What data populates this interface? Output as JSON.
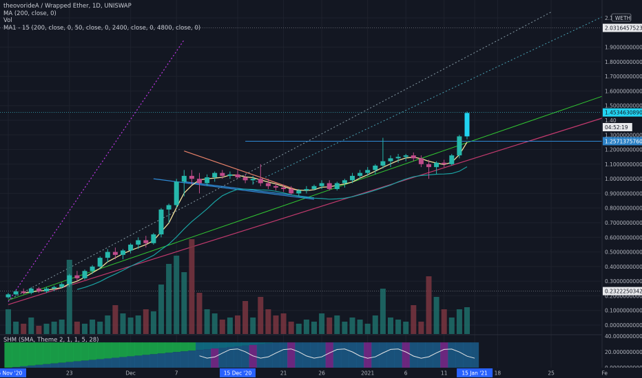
{
  "legend": {
    "title": "theovorideA / Wrapped Ether, 1D, UNISWAP",
    "ma": "MA (200, close, 0)",
    "vol": "Vol",
    "ma1": "MA1 - 15 (200, close, 0, 50, close, 0, 2400, close, 0, 4800, close, 0)"
  },
  "indicator": {
    "label": "SHM (SMA, Theme 2, 1, 1, 5, 28)"
  },
  "currency": "WETH",
  "price_tags": [
    {
      "text": "2.0316457523",
      "value": 2.0316457523,
      "style": "light"
    },
    {
      "text": "1.4534630890",
      "value": 1.453463089,
      "style": "cyan"
    },
    {
      "text": "04:52:19",
      "value": 1.4,
      "style": "light"
    },
    {
      "text": "1.2571375760",
      "value": 1.257137576,
      "style": "blue"
    },
    {
      "text": "0.2322250342",
      "value": 0.2322250342,
      "style": "light"
    }
  ],
  "indicator_ticks": [
    "40.0000000000",
    "20.0000000000",
    "0.0000000000"
  ],
  "date_highlights": [
    "15 Nov '20",
    "15 Dec '20",
    "15 Jan '21"
  ],
  "chart_data": {
    "type": "candlestick",
    "title": "theovorideA / Wrapped Ether, 1D, UNISWAP",
    "y_ticks": [
      {
        "v": 2.1,
        "label": "2.10"
      },
      {
        "v": 1.9,
        "label": "1.9000000000"
      },
      {
        "v": 1.8,
        "label": "1.8000000000"
      },
      {
        "v": 1.7,
        "label": "1.7000000000"
      },
      {
        "v": 1.6,
        "label": "1.6000000000"
      },
      {
        "v": 1.5,
        "label": "1.5000000000"
      },
      {
        "v": 1.4,
        "label": "1.40"
      },
      {
        "v": 1.3,
        "label": "1.3000000000"
      },
      {
        "v": 1.2,
        "label": "1.2000000000"
      },
      {
        "v": 1.1,
        "label": "1.1000000000"
      },
      {
        "v": 1.0,
        "label": "1.0000000000"
      },
      {
        "v": 0.9,
        "label": "0.9000000000"
      },
      {
        "v": 0.8,
        "label": "0.8000000000"
      },
      {
        "v": 0.7,
        "label": "0.7000000000"
      },
      {
        "v": 0.6,
        "label": "0.6000000000"
      },
      {
        "v": 0.5,
        "label": "0.5000000000"
      },
      {
        "v": 0.4,
        "label": "0.4000000000"
      },
      {
        "v": 0.3,
        "label": "0.3000000000"
      },
      {
        "v": 0.2,
        "label": "0.2000000000"
      },
      {
        "v": 0.1,
        "label": "0.1000000000"
      },
      {
        "v": 0.0,
        "label": "0.0000000000"
      }
    ],
    "x_labels": [
      {
        "label": "15 Nov '20",
        "day": 0
      },
      {
        "label": "23",
        "day": 8
      },
      {
        "label": "Dec",
        "day": 16
      },
      {
        "label": "7",
        "day": 22
      },
      {
        "label": "15 Dec '20",
        "day": 30
      },
      {
        "label": "21",
        "day": 36
      },
      {
        "label": "26",
        "day": 41
      },
      {
        "label": "2021",
        "day": 47
      },
      {
        "label": "6",
        "day": 52
      },
      {
        "label": "11",
        "day": 57
      },
      {
        "label": "15 Jan '21",
        "day": 61
      },
      {
        "label": "18",
        "day": 64
      },
      {
        "label": "25",
        "day": 71
      },
      {
        "label": "Fe",
        "day": 78
      }
    ],
    "candles": [
      [
        0.19,
        0.22,
        0.18,
        0.21
      ],
      [
        0.21,
        0.24,
        0.2,
        0.23
      ],
      [
        0.23,
        0.25,
        0.21,
        0.22
      ],
      [
        0.22,
        0.26,
        0.21,
        0.25
      ],
      [
        0.25,
        0.26,
        0.22,
        0.23
      ],
      [
        0.23,
        0.26,
        0.22,
        0.25
      ],
      [
        0.25,
        0.27,
        0.23,
        0.26
      ],
      [
        0.26,
        0.29,
        0.25,
        0.28
      ],
      [
        0.28,
        0.35,
        0.26,
        0.34
      ],
      [
        0.34,
        0.37,
        0.3,
        0.32
      ],
      [
        0.32,
        0.38,
        0.31,
        0.37
      ],
      [
        0.37,
        0.41,
        0.35,
        0.4
      ],
      [
        0.4,
        0.47,
        0.38,
        0.46
      ],
      [
        0.46,
        0.52,
        0.43,
        0.5
      ],
      [
        0.5,
        0.53,
        0.45,
        0.48
      ],
      [
        0.48,
        0.52,
        0.45,
        0.51
      ],
      [
        0.51,
        0.56,
        0.49,
        0.55
      ],
      [
        0.55,
        0.6,
        0.52,
        0.58
      ],
      [
        0.58,
        0.61,
        0.53,
        0.56
      ],
      [
        0.56,
        0.63,
        0.55,
        0.62
      ],
      [
        0.62,
        0.8,
        0.6,
        0.79
      ],
      [
        0.79,
        0.83,
        0.7,
        0.82
      ],
      [
        0.82,
        1.0,
        0.8,
        0.98
      ],
      [
        0.98,
        1.06,
        0.88,
        1.02
      ],
      [
        1.02,
        1.06,
        0.96,
        1.0
      ],
      [
        1.0,
        1.04,
        0.9,
        0.97
      ],
      [
        0.97,
        1.03,
        0.95,
        1.01
      ],
      [
        1.01,
        1.05,
        0.98,
        1.04
      ],
      [
        1.04,
        1.06,
        1.0,
        1.02
      ],
      [
        1.02,
        1.05,
        1.0,
        1.03
      ],
      [
        1.03,
        1.06,
        1.0,
        1.01
      ],
      [
        1.01,
        1.03,
        0.97,
        0.99
      ],
      [
        0.99,
        1.02,
        0.96,
        1.0
      ],
      [
        1.0,
        1.1,
        0.95,
        0.97
      ],
      [
        0.97,
        1.0,
        0.93,
        0.95
      ],
      [
        0.95,
        0.97,
        0.92,
        0.94
      ],
      [
        0.94,
        0.96,
        0.91,
        0.93
      ],
      [
        0.93,
        0.95,
        0.89,
        0.9
      ],
      [
        0.9,
        0.93,
        0.88,
        0.92
      ],
      [
        0.92,
        0.95,
        0.9,
        0.93
      ],
      [
        0.93,
        0.96,
        0.92,
        0.95
      ],
      [
        0.95,
        0.99,
        0.93,
        0.97
      ],
      [
        0.97,
        0.99,
        0.92,
        0.93
      ],
      [
        0.93,
        0.98,
        0.92,
        0.97
      ],
      [
        0.97,
        1.0,
        0.94,
        0.99
      ],
      [
        0.99,
        1.04,
        0.97,
        1.02
      ],
      [
        1.02,
        1.06,
        1.0,
        1.04
      ],
      [
        1.04,
        1.08,
        1.02,
        1.06
      ],
      [
        1.06,
        1.1,
        1.03,
        1.09
      ],
      [
        1.09,
        1.28,
        1.07,
        1.12
      ],
      [
        1.12,
        1.16,
        1.08,
        1.14
      ],
      [
        1.14,
        1.17,
        1.11,
        1.15
      ],
      [
        1.15,
        1.17,
        1.12,
        1.16
      ],
      [
        1.16,
        1.18,
        1.12,
        1.14
      ],
      [
        1.14,
        1.16,
        1.08,
        1.1
      ],
      [
        1.1,
        1.13,
        1.0,
        1.08
      ],
      [
        1.08,
        1.12,
        1.03,
        1.11
      ],
      [
        1.11,
        1.13,
        1.08,
        1.1
      ],
      [
        1.1,
        1.17,
        1.09,
        1.16
      ],
      [
        1.16,
        1.3,
        1.14,
        1.29
      ],
      [
        1.29,
        1.46,
        1.27,
        1.45
      ]
    ],
    "volume": [
      12,
      6,
      5,
      8,
      4,
      5,
      6,
      7,
      36,
      6,
      5,
      7,
      6,
      9,
      14,
      10,
      8,
      9,
      12,
      11,
      24,
      34,
      38,
      30,
      46,
      20,
      12,
      10,
      7,
      8,
      9,
      16,
      8,
      18,
      12,
      9,
      10,
      6,
      5,
      7,
      6,
      10,
      8,
      9,
      6,
      8,
      7,
      5,
      9,
      22,
      8,
      7,
      6,
      14,
      6,
      28,
      18,
      12,
      8,
      12,
      13
    ]
  }
}
